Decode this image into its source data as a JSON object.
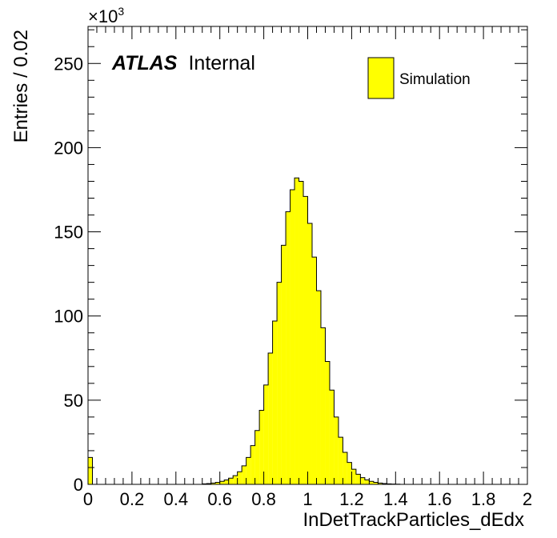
{
  "chart_data": {
    "type": "bar",
    "histogram": true,
    "xlabel": "InDetTrackParticles_dEdx",
    "ylabel": "Entries / 0.02",
    "y_multiplier": {
      "base": "×10",
      "exponent": "3"
    },
    "xlim": [
      0,
      2
    ],
    "ylim": [
      0,
      272
    ],
    "bin_width": 0.02,
    "x_ticks": [
      0,
      0.2,
      0.4,
      0.6,
      0.8,
      1,
      1.2,
      1.4,
      1.6,
      1.8,
      2
    ],
    "x_tick_labels": [
      "0",
      "0.2",
      "0.4",
      "0.6",
      "0.8",
      "1",
      "1.2",
      "1.4",
      "1.6",
      "1.8",
      "2"
    ],
    "y_ticks": [
      0,
      50,
      100,
      150,
      200,
      250
    ],
    "y_tick_labels": [
      "0",
      "50",
      "100",
      "150",
      "200",
      "250"
    ],
    "fill_color": "#ffff00",
    "line_color": "#000000",
    "series": [
      {
        "name": "Simulation",
        "values": [
          16,
          0,
          0,
          0,
          0,
          0,
          0,
          0,
          0,
          0,
          0,
          0,
          0,
          0,
          0,
          0,
          0,
          0,
          0,
          0,
          0,
          0,
          0,
          0,
          0,
          0,
          0.3,
          0.5,
          0.8,
          1.2,
          1.8,
          2.6,
          3.7,
          5.2,
          7.5,
          11,
          16,
          23,
          32,
          44,
          59,
          78,
          97,
          120,
          142,
          162,
          175,
          182,
          180,
          171,
          155,
          135,
          115,
          93,
          73,
          56,
          40,
          28,
          19,
          13,
          9,
          6,
          4,
          2.7,
          1.8,
          1.2,
          0.8,
          0.5,
          0.3,
          0.2,
          0.1,
          0,
          0,
          0,
          0,
          0,
          0,
          0,
          0,
          0,
          0,
          0,
          0,
          0,
          0,
          0,
          0,
          0,
          0,
          0,
          0,
          0,
          0,
          0,
          0,
          0,
          0,
          0,
          0,
          0
        ]
      }
    ],
    "legend": {
      "label": "Simulation",
      "position": "top-right"
    },
    "annotation": {
      "atlas": "ATLAS",
      "status": "Internal"
    }
  }
}
